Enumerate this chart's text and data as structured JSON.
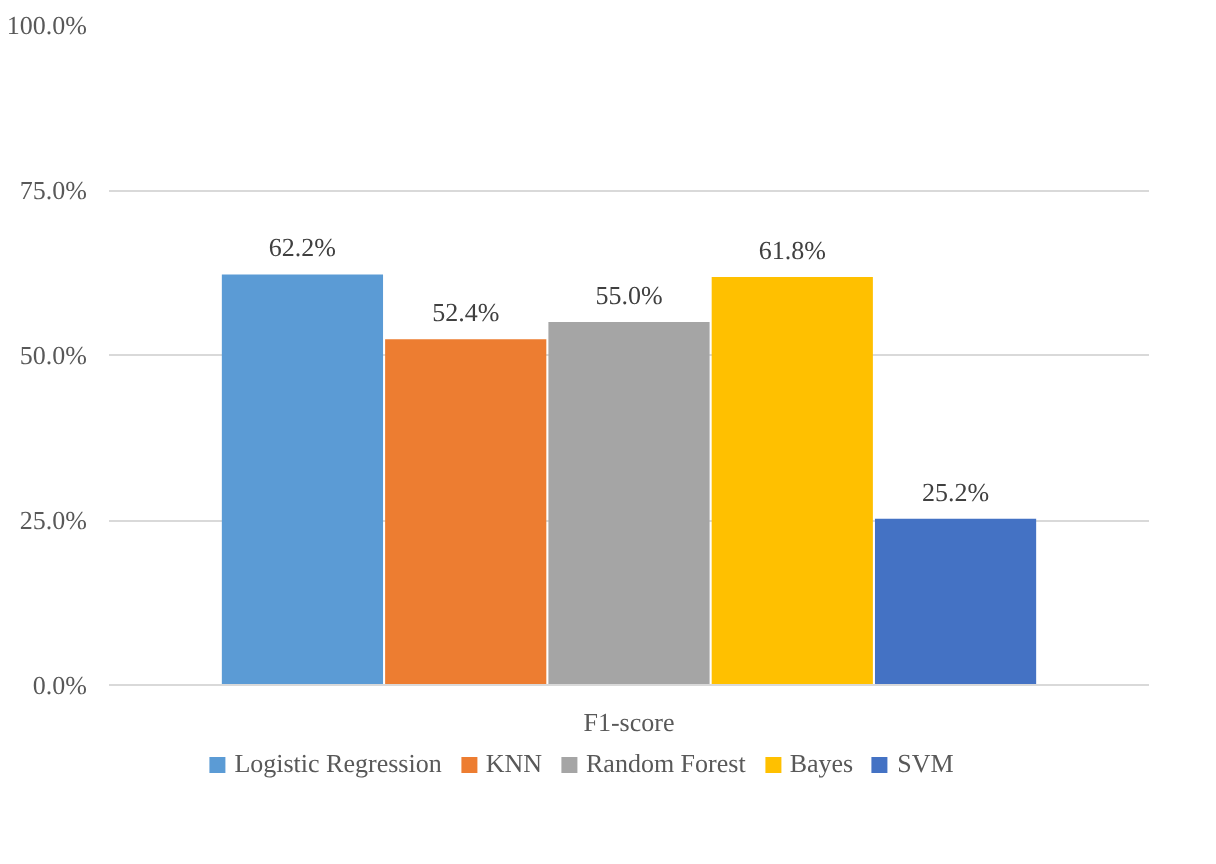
{
  "chart_data": {
    "type": "bar",
    "categories": [
      "F1-score"
    ],
    "series": [
      {
        "name": "Logistic Regression",
        "color": "#5b9bd5",
        "values": [
          62.2
        ],
        "value_labels": [
          "62.2%"
        ]
      },
      {
        "name": "KNN",
        "color": "#ed7d31",
        "values": [
          52.4
        ],
        "value_labels": [
          "52.4%"
        ]
      },
      {
        "name": "Random Forest",
        "color": "#a5a5a5",
        "values": [
          55.0
        ],
        "value_labels": [
          "55.0%"
        ]
      },
      {
        "name": "Bayes",
        "color": "#ffc000",
        "values": [
          61.8
        ],
        "value_labels": [
          "61.8%"
        ]
      },
      {
        "name": "SVM",
        "color": "#4472c4",
        "values": [
          25.2
        ],
        "value_labels": [
          "25.2%"
        ]
      }
    ],
    "ylim": [
      0,
      100
    ],
    "yticks": [
      {
        "value": 0,
        "label": "0.0%"
      },
      {
        "value": 25,
        "label": "25.0%"
      },
      {
        "value": 50,
        "label": "50.0%"
      },
      {
        "value": 75,
        "label": "75.0%"
      },
      {
        "value": 100,
        "label": "100.0%"
      }
    ],
    "grid": "y",
    "legend": "bottom"
  }
}
